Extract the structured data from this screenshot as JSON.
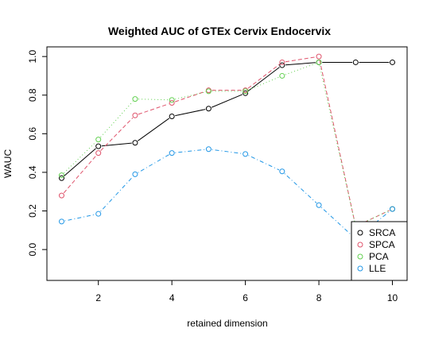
{
  "chart_data": {
    "type": "line",
    "title": "Weighted AUC of GTEx Cervix Endocervix",
    "xlabel": "retained dimension",
    "ylabel": "WAUC",
    "xlim": [
      0.6,
      10.4
    ],
    "ylim": [
      -0.16,
      1.05
    ],
    "x_ticks": [
      2,
      4,
      6,
      8,
      10
    ],
    "y_ticks": [
      0.0,
      0.2,
      0.4,
      0.6,
      0.8,
      1.0
    ],
    "x_tick_labels": [
      "2",
      "4",
      "6",
      "8",
      "10"
    ],
    "y_tick_labels": [
      "0.0",
      "0.2",
      "0.4",
      "0.6",
      "0.8",
      "1.0"
    ],
    "grid": false,
    "legend_position": "bottom-right",
    "x": [
      1,
      2,
      3,
      4,
      5,
      6,
      7,
      8,
      9,
      10
    ],
    "series": [
      {
        "name": "SRCA",
        "color": "#000000",
        "dash": "solid",
        "values": [
          0.37,
          0.535,
          0.553,
          0.69,
          0.73,
          0.81,
          0.955,
          0.97,
          0.97,
          0.97
        ]
      },
      {
        "name": "SPCA",
        "color": "#DF536B",
        "dash": "dashed",
        "values": [
          0.28,
          0.5,
          0.695,
          0.76,
          0.825,
          0.825,
          0.97,
          1.0,
          0.12,
          0.21
        ]
      },
      {
        "name": "PCA",
        "color": "#61D04F",
        "dash": "dotted",
        "values": [
          0.385,
          0.57,
          0.78,
          0.775,
          0.82,
          0.82,
          0.9,
          0.97,
          0.12,
          0.21
        ]
      },
      {
        "name": "LLE",
        "color": "#2297E6",
        "dash": "dotdash",
        "values": [
          0.145,
          0.185,
          0.39,
          0.5,
          0.52,
          0.495,
          0.405,
          0.23,
          0.055,
          0.21
        ]
      }
    ]
  }
}
